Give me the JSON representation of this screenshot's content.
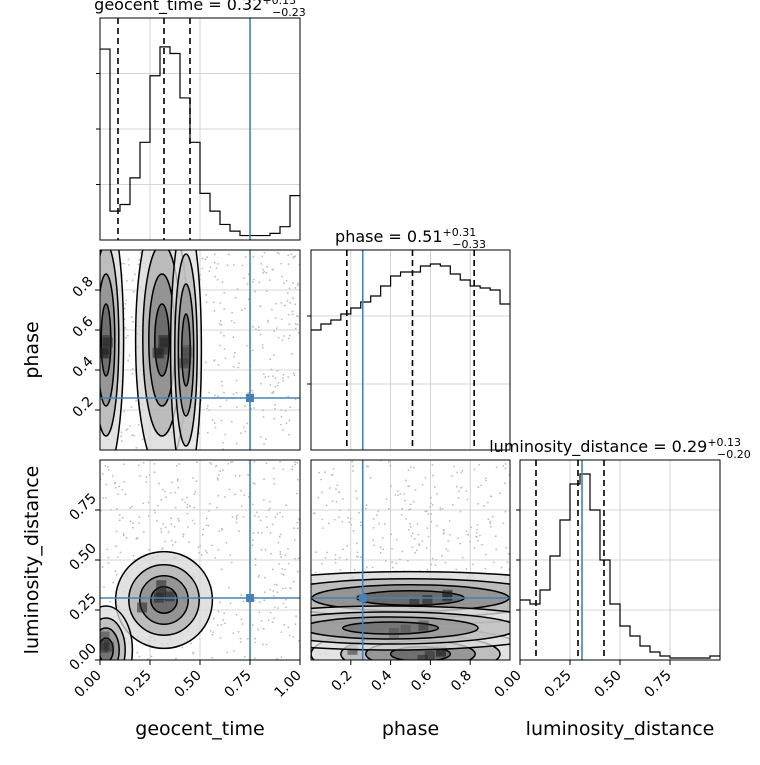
{
  "chart_data": {
    "type": "corner",
    "parameters": [
      {
        "name": "geocent_time",
        "title_value": "0.32",
        "plus": "+0.13",
        "minus": "−0.23"
      },
      {
        "name": "phase",
        "title_value": "0.51",
        "plus": "+0.31",
        "minus": "−0.33"
      },
      {
        "name": "luminosity_distance",
        "title_value": "0.29",
        "plus": "+0.13",
        "minus": "−0.20"
      }
    ],
    "injection": {
      "geocent_time": 0.75,
      "phase": 0.26,
      "luminosity_distance": 0.31
    },
    "color_injection": "#4682b4",
    "quantiles": {
      "geocent_time": [
        0.09,
        0.32,
        0.45
      ],
      "phase": [
        0.18,
        0.51,
        0.82
      ],
      "luminosity_distance": [
        0.08,
        0.29,
        0.42
      ]
    },
    "ranges": {
      "geocent_time": [
        0.0,
        1.0
      ],
      "phase": [
        0.0,
        1.0
      ],
      "luminosity_distance": [
        0.0,
        1.0
      ]
    },
    "histograms": {
      "geocent_time": [
        0.86,
        0.13,
        0.16,
        0.28,
        0.44,
        0.74,
        0.87,
        0.84,
        0.64,
        0.44,
        0.21,
        0.13,
        0.07,
        0.04,
        0.02,
        0.02,
        0.02,
        0.03,
        0.06,
        0.2
      ],
      "phase": [
        0.6,
        0.63,
        0.65,
        0.68,
        0.71,
        0.74,
        0.77,
        0.82,
        0.87,
        0.89,
        0.89,
        0.92,
        0.93,
        0.92,
        0.88,
        0.85,
        0.82,
        0.81,
        0.8,
        0.73
      ],
      "luminosity_distance": [
        0.3,
        0.28,
        0.35,
        0.52,
        0.7,
        0.88,
        0.93,
        0.75,
        0.5,
        0.28,
        0.17,
        0.12,
        0.07,
        0.04,
        0.02,
        0.01,
        0.01,
        0.01,
        0.01,
        0.02
      ]
    },
    "hist_ticks": {
      "geocent_time": [
        0.25,
        0.5,
        0.75
      ],
      "phase": [
        0.33,
        0.67
      ],
      "luminosity_distance": [
        0.25,
        0.5,
        0.75
      ]
    },
    "ticks": {
      "geocent_time": {
        "values": [
          0.0,
          0.25,
          0.5,
          0.75,
          1.0
        ],
        "labels": [
          "0.00",
          "0.25",
          "0.50",
          "0.75",
          "1.00"
        ]
      },
      "phase_x": {
        "values": [
          0.2,
          0.4,
          0.6,
          0.8
        ],
        "labels": [
          "0.2",
          "0.4",
          "0.6",
          "0.8"
        ]
      },
      "phase_y": {
        "values": [
          0.2,
          0.4,
          0.6,
          0.8
        ],
        "labels": [
          "0.2",
          "0.4",
          "0.6",
          "0.8"
        ]
      },
      "luminosity_distance_x": {
        "values": [
          0.0,
          0.25,
          0.5,
          0.75
        ],
        "labels": [
          "0.00",
          "0.25",
          "0.50",
          "0.75"
        ]
      },
      "luminosity_distance_y": {
        "values": [
          0.0,
          0.25,
          0.5,
          0.75
        ],
        "labels": [
          "0.00",
          "0.25",
          "0.50",
          "0.75"
        ]
      }
    },
    "axis_labels": {
      "x": [
        "geocent_time",
        "phase",
        "luminosity_distance"
      ],
      "y": [
        "phase",
        "luminosity_distance"
      ]
    },
    "grid": true,
    "density_pairs": [
      {
        "x": "geocent_time",
        "y": "phase",
        "blobs": [
          {
            "cx": 0.03,
            "cy": 0.55,
            "sx": 0.04,
            "sy": 0.3,
            "a": 0.9
          },
          {
            "cx": 0.31,
            "cy": 0.55,
            "sx": 0.06,
            "sy": 0.3,
            "a": 1.0
          },
          {
            "cx": 0.43,
            "cy": 0.5,
            "sx": 0.035,
            "sy": 0.3,
            "a": 0.45
          }
        ]
      },
      {
        "x": "geocent_time",
        "y": "luminosity_distance",
        "blobs": [
          {
            "cx": 0.32,
            "cy": 0.3,
            "sx": 0.11,
            "sy": 0.11,
            "a": 1.0
          },
          {
            "cx": 0.03,
            "cy": 0.05,
            "sx": 0.06,
            "sy": 0.1,
            "a": 0.7
          }
        ]
      },
      {
        "x": "phase",
        "y": "luminosity_distance",
        "blobs": [
          {
            "cx": 0.5,
            "cy": 0.31,
            "sx": 0.45,
            "sy": 0.06,
            "a": 1.0
          },
          {
            "cx": 0.55,
            "cy": 0.03,
            "sx": 0.25,
            "sy": 0.06,
            "a": 0.9
          },
          {
            "cx": 0.4,
            "cy": 0.16,
            "sx": 0.4,
            "sy": 0.05,
            "a": 0.45
          }
        ]
      }
    ]
  }
}
